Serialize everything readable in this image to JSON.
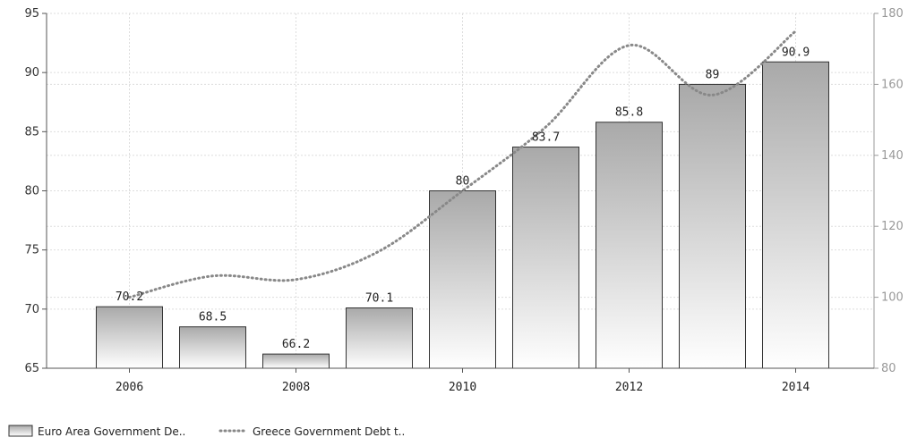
{
  "chart_data": {
    "type": "bar",
    "x": [
      2006,
      2007,
      2008,
      2009,
      2010,
      2011,
      2012,
      2013,
      2014
    ],
    "x_tick_labels": [
      "2006",
      "2008",
      "2010",
      "2012",
      "2014"
    ],
    "series": [
      {
        "name": "Euro Area Government De..",
        "type": "bar",
        "axis": "left",
        "values": [
          70.2,
          68.5,
          66.2,
          70.1,
          80,
          83.7,
          85.8,
          89,
          90.9
        ],
        "labels": [
          "70.2",
          "68.5",
          "66.2",
          "70.1",
          "80",
          "83.7",
          "85.8",
          "89",
          "90.9"
        ]
      },
      {
        "name": "Greece Government Debt t..",
        "type": "line",
        "style": "dotted",
        "axis": "right",
        "values": [
          100,
          106,
          105,
          113,
          130,
          148,
          171,
          157,
          175
        ]
      }
    ],
    "y_left": {
      "ylim": [
        65,
        95
      ],
      "ticks": [
        "65",
        "70",
        "75",
        "80",
        "85",
        "90",
        "95"
      ]
    },
    "y_right": {
      "ylim": [
        80,
        180
      ],
      "ticks": [
        "80",
        "100",
        "120",
        "140",
        "160",
        "180"
      ]
    },
    "title": "",
    "xlabel": "",
    "ylabel": "",
    "grid": true,
    "legend_position": "bottom-left",
    "colors": {
      "bar_top": "#a9a9a9",
      "bar_bottom": "#ffffff",
      "bar_stroke": "#333333",
      "line": "#888888",
      "grid": "#dddddd"
    }
  }
}
